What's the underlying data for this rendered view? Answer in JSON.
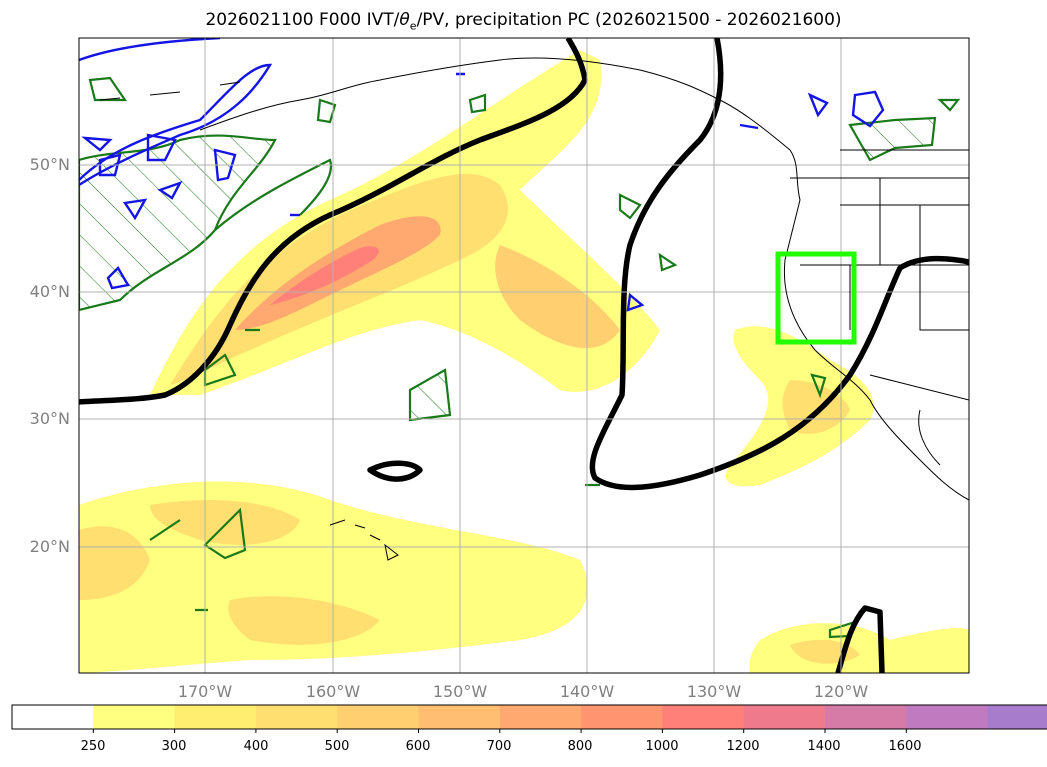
{
  "title": {
    "prefix": "2026021100 F000 IVT/",
    "theta": "θ",
    "theta_sub": "e",
    "suffix": "/PV, precipitation PC (2026021500 - 2026021600)"
  },
  "map": {
    "lat_labels": [
      "50°N",
      "40°N",
      "30°N",
      "20°N"
    ],
    "lon_labels": [
      "170°W",
      "160°W",
      "150°W",
      "140°W",
      "130°W",
      "120°W"
    ]
  },
  "colorbar": {
    "ticks": [
      "250",
      "300",
      "400",
      "500",
      "600",
      "700",
      "800",
      "1000",
      "1200",
      "1400",
      "1600"
    ],
    "colors": [
      "#ffff80",
      "#ffee70",
      "#ffdf70",
      "#ffcf70",
      "#ffbe70",
      "#ffa870",
      "#ff9470",
      "#ff8078",
      "#ef7a8c",
      "#d67aa8",
      "#bf7ac0",
      "#a87ccc"
    ]
  }
}
